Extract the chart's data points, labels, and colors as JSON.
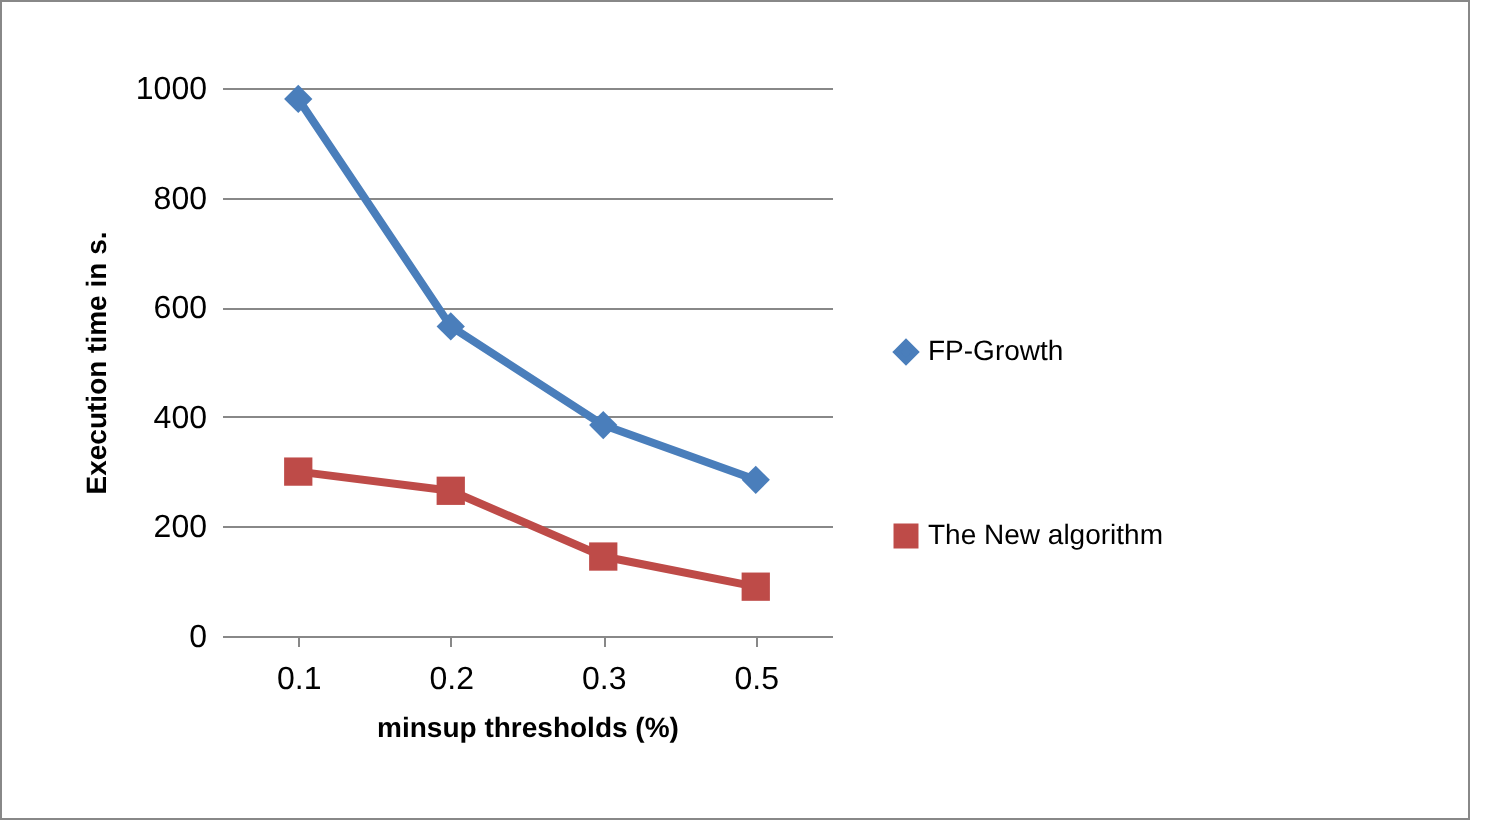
{
  "chart_data": {
    "type": "line",
    "xlabel": "minsup thresholds (%)",
    "ylabel": "Execution time in s.",
    "categories": [
      "0.1",
      "0.2",
      "0.3",
      "0.5"
    ],
    "series": [
      {
        "name": "FP-Growth",
        "color": "#4a7ebb",
        "marker": "diamond",
        "values": [
          980,
          565,
          385,
          285
        ]
      },
      {
        "name": "The New algorithm",
        "color": "#be4b48",
        "marker": "square",
        "values": [
          300,
          265,
          145,
          90
        ]
      }
    ],
    "ylim": [
      0,
      1000
    ],
    "yticks": [
      0,
      200,
      400,
      600,
      800,
      1000
    ],
    "grid": "y",
    "legend": "right",
    "line_style": "solid"
  }
}
